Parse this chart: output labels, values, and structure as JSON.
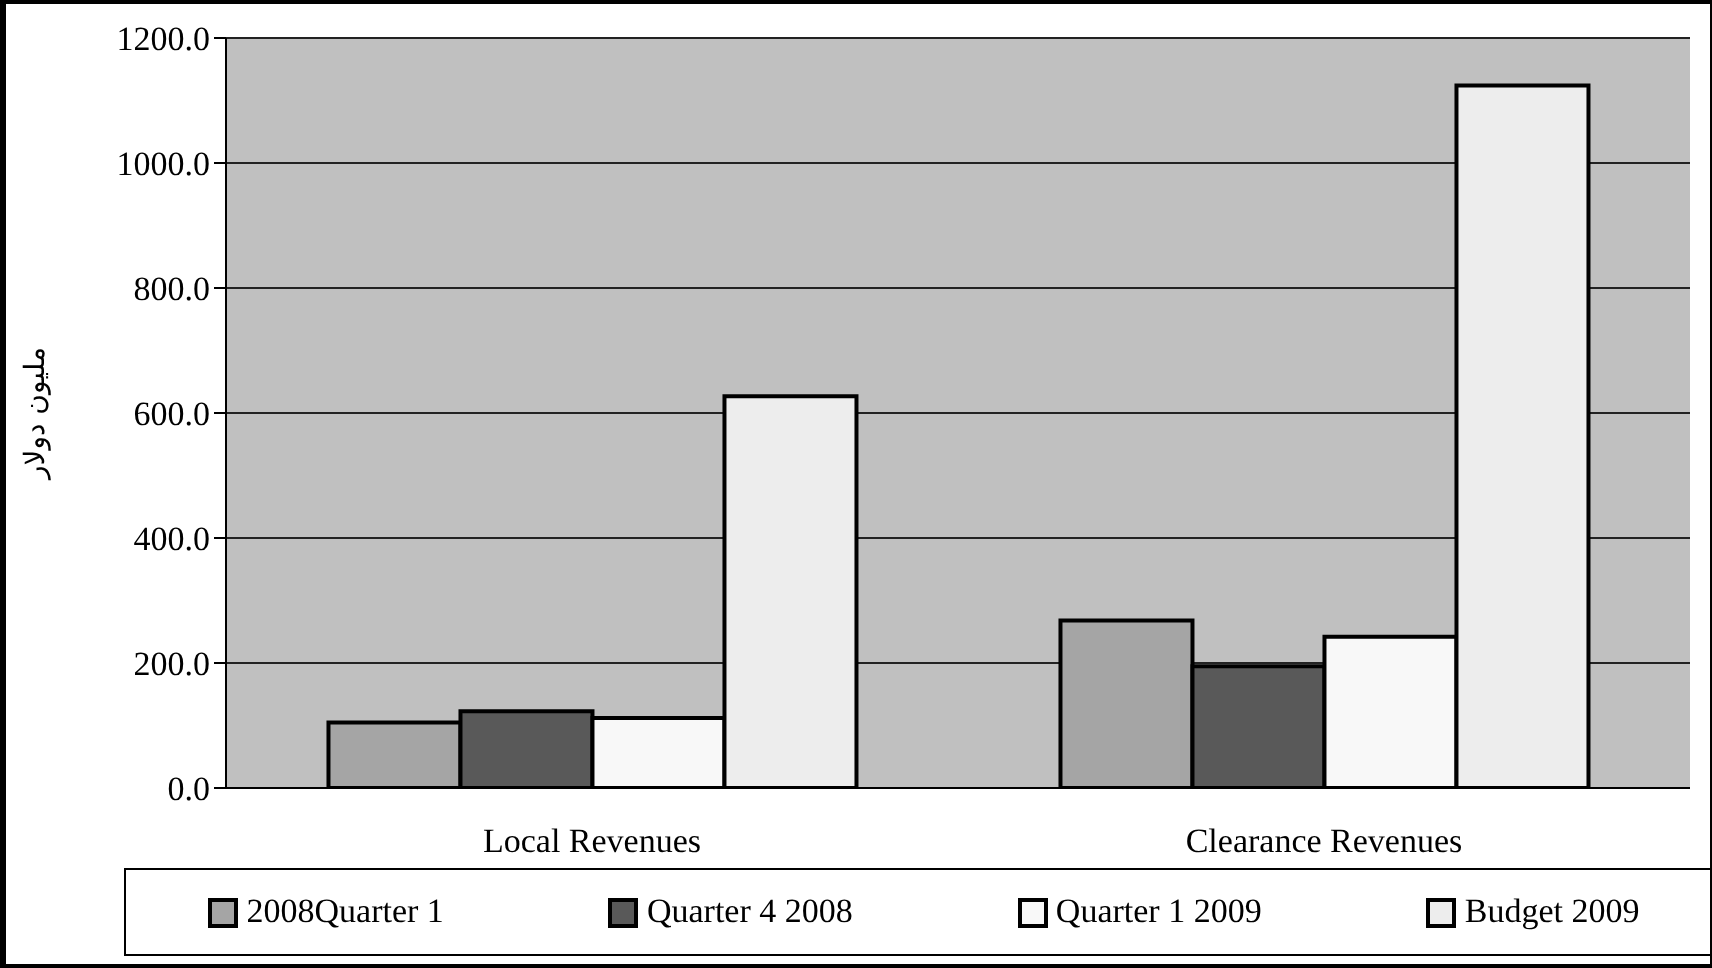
{
  "chart_data": {
    "type": "bar",
    "ylabel": "مليون دولار",
    "categories": [
      "Local Revenues",
      "Clearance Revenues"
    ],
    "series": [
      {
        "name": "2008Quarter 1",
        "color": "#a5a5a5",
        "values": [
          105,
          268
        ]
      },
      {
        "name": "Quarter 4 2008",
        "color": "#595959",
        "values": [
          123,
          195
        ]
      },
      {
        "name": "Quarter 1 2009",
        "color": "#f8f8f8",
        "values": [
          112,
          242
        ]
      },
      {
        "name": "Budget 2009",
        "color": "#ededed",
        "values": [
          627,
          1124
        ]
      }
    ],
    "ylim": [
      0,
      1200
    ],
    "yticks": [
      {
        "value": 0,
        "label": "0.0"
      },
      {
        "value": 200,
        "label": "200.0"
      },
      {
        "value": 400,
        "label": "400.0"
      },
      {
        "value": 600,
        "label": "600.0"
      },
      {
        "value": 800,
        "label": "800.0"
      },
      {
        "value": 1000,
        "label": "1000.0"
      },
      {
        "value": 1200,
        "label": "1200.0"
      }
    ],
    "grid": "y",
    "legend": "bottom"
  }
}
